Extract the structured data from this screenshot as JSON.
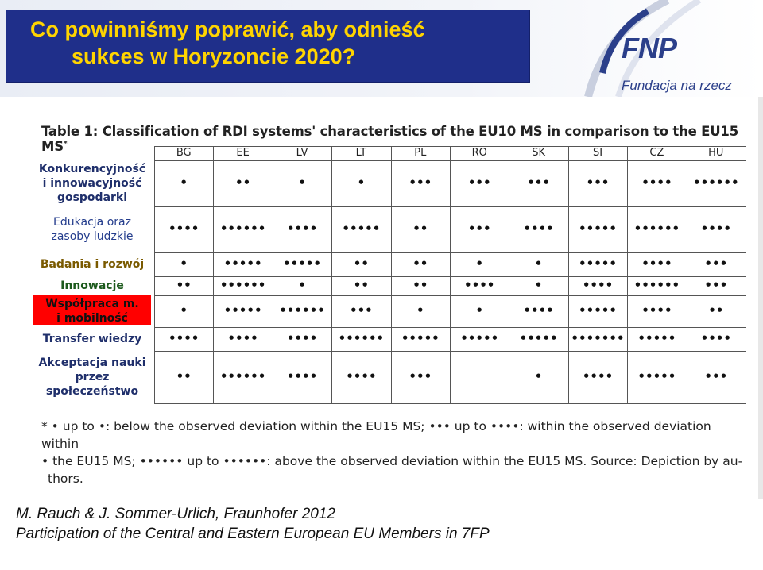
{
  "header": {
    "title_line1": "Co powinniśmy poprawić, aby odnieść",
    "title_line2": "sukces w Horyzoncie 2020?",
    "logo": "FNP",
    "logo_sub": "Fundacja na rzecz"
  },
  "table": {
    "title": "Table 1: Classification of RDI systems' characteristics of the EU10 MS in comparison to the EU15 MS",
    "title_mark": "*",
    "columns": [
      "BG",
      "EE",
      "LV",
      "LT",
      "PL",
      "RO",
      "SK",
      "SI",
      "CZ",
      "HU"
    ],
    "rows": [
      {
        "label_lines": [
          "Konkurencyjność",
          "i innowacyjność",
          "gospodarki"
        ],
        "cells": [
          "•",
          "••",
          "•",
          "•",
          "•••",
          "•••",
          "•••",
          "•••",
          "••••",
          "••••••"
        ]
      },
      {
        "label_lines": [
          "Edukacja oraz",
          "zasoby ludzkie"
        ],
        "cells": [
          "••••",
          "••••••",
          "••••",
          "•••••",
          "••",
          "•••",
          "••••",
          "•••••",
          "••••••",
          "••••"
        ]
      },
      {
        "label_lines": [
          "Badania i rozwój"
        ],
        "cells": [
          "•",
          "•••••",
          "•••••",
          "••",
          "••",
          "•",
          "•",
          "•••••",
          "••••",
          "•••"
        ]
      },
      {
        "label_lines": [
          "Innowacje"
        ],
        "cells": [
          "••",
          "••••••",
          "•",
          "••",
          "••",
          "••••",
          "•",
          "••••",
          "••••••",
          "•••"
        ]
      },
      {
        "label_lines": [
          "Współpraca m.",
          "i mobilność"
        ],
        "cells": [
          "•",
          "•••••",
          "••••••",
          "•••",
          "•",
          "•",
          "••••",
          "•••••",
          "••••",
          "••"
        ]
      },
      {
        "label_lines": [
          "Transfer wiedzy"
        ],
        "cells": [
          "••••",
          "••••",
          "••••",
          "••••••",
          "•••••",
          "•••••",
          "•••••",
          "•••••••",
          "•••••",
          "••••"
        ]
      },
      {
        "label_lines": [
          "Akceptacja nauki",
          "przez",
          "społeczeństwo"
        ],
        "cells": [
          "••",
          "••••••",
          "••••",
          "••••",
          "•••",
          "",
          "•",
          "••••",
          "•••••",
          "•••"
        ]
      }
    ]
  },
  "footnote": {
    "line1": "* • up to •: below the observed deviation within the EU15 MS; ••• up to ••••: within the observed deviation within",
    "line2": "• the EU15 MS; •••••• up to ••••••: above the observed deviation within the EU15 MS. Source: Depiction by au-",
    "line3": "thors."
  },
  "source": {
    "line1": "M. Rauch & J. Sommer-Urlich, Fraunhofer 2012",
    "line2": "Participation of the Central and Eastern European EU Members in 7FP"
  },
  "colors": {
    "title_bg": "#1f2f8a",
    "title_text": "#ffd400",
    "label_boxes": [
      "#ffffff",
      "#ffffff",
      "#ffffff",
      "#ffffff",
      "#ff0000",
      "#ffffff",
      "#ffffff"
    ]
  }
}
